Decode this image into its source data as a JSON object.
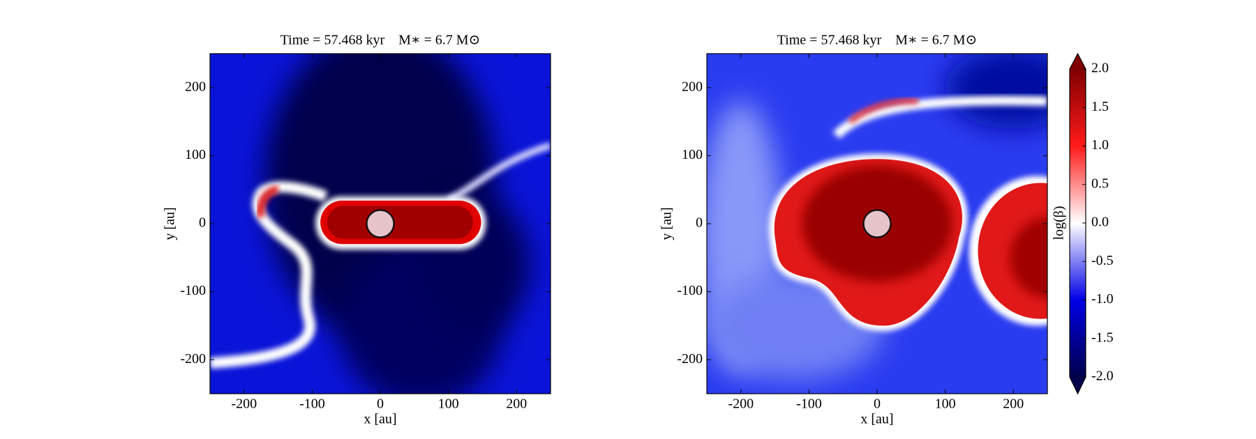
{
  "chart_data": [
    {
      "type": "heatmap",
      "title": "Time = 57.468 kyr    M∗ = 6.7 M⊙",
      "xlabel": "x [au]",
      "ylabel": "y [au]",
      "xlim": [
        -250,
        250
      ],
      "ylim": [
        -250,
        250
      ],
      "xticks": [
        -200,
        -100,
        0,
        100,
        200
      ],
      "yticks": [
        -200,
        -100,
        0,
        100,
        200
      ]
    },
    {
      "type": "heatmap",
      "title": "Time = 57.468 kyr    M∗ = 6.7 M⊙",
      "xlabel": "x [au]",
      "ylabel": "y [au]",
      "xlim": [
        -250,
        250
      ],
      "ylim": [
        -250,
        250
      ],
      "xticks": [
        -200,
        -100,
        0,
        100,
        200
      ],
      "yticks": [
        -200,
        -100,
        0,
        100,
        200
      ],
      "colorbar": {
        "label": "log(β)",
        "lim": [
          -2,
          2
        ],
        "ticks": [
          {
            "value": 2,
            "label": "2.0"
          },
          {
            "value": 1.5,
            "label": "1.5"
          },
          {
            "value": 1,
            "label": "1.0"
          },
          {
            "value": 0.5,
            "label": "0.5"
          },
          {
            "value": 0,
            "label": "0.0"
          },
          {
            "value": -0.5,
            "label": "-0.5"
          },
          {
            "value": -1,
            "label": "-1.0"
          },
          {
            "value": -1.5,
            "label": "-1.5"
          },
          {
            "value": -2,
            "label": "-2.0"
          }
        ]
      }
    }
  ]
}
